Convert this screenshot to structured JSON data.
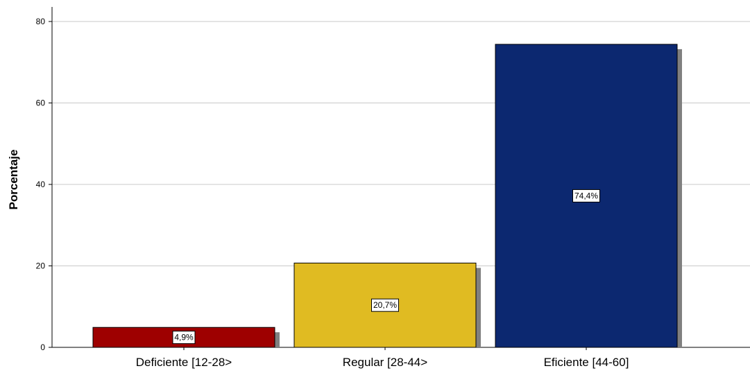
{
  "chart_data": {
    "type": "bar",
    "categories": [
      "Deficiente [12-28>",
      "Regular [28-44>",
      "Eficiente [44-60]"
    ],
    "values": [
      4.9,
      20.7,
      74.4
    ],
    "data_labels": [
      "4,9%",
      "20,7%",
      "74,4%"
    ],
    "colors": [
      "#9e0000",
      "#e0bb22",
      "#0c2870"
    ],
    "ylabel": "Porcentaje",
    "xlabel": "",
    "title": "",
    "ylim": [
      0,
      83
    ],
    "yticks": [
      0,
      20,
      40,
      60,
      80
    ],
    "grid": true,
    "legend": "none"
  }
}
